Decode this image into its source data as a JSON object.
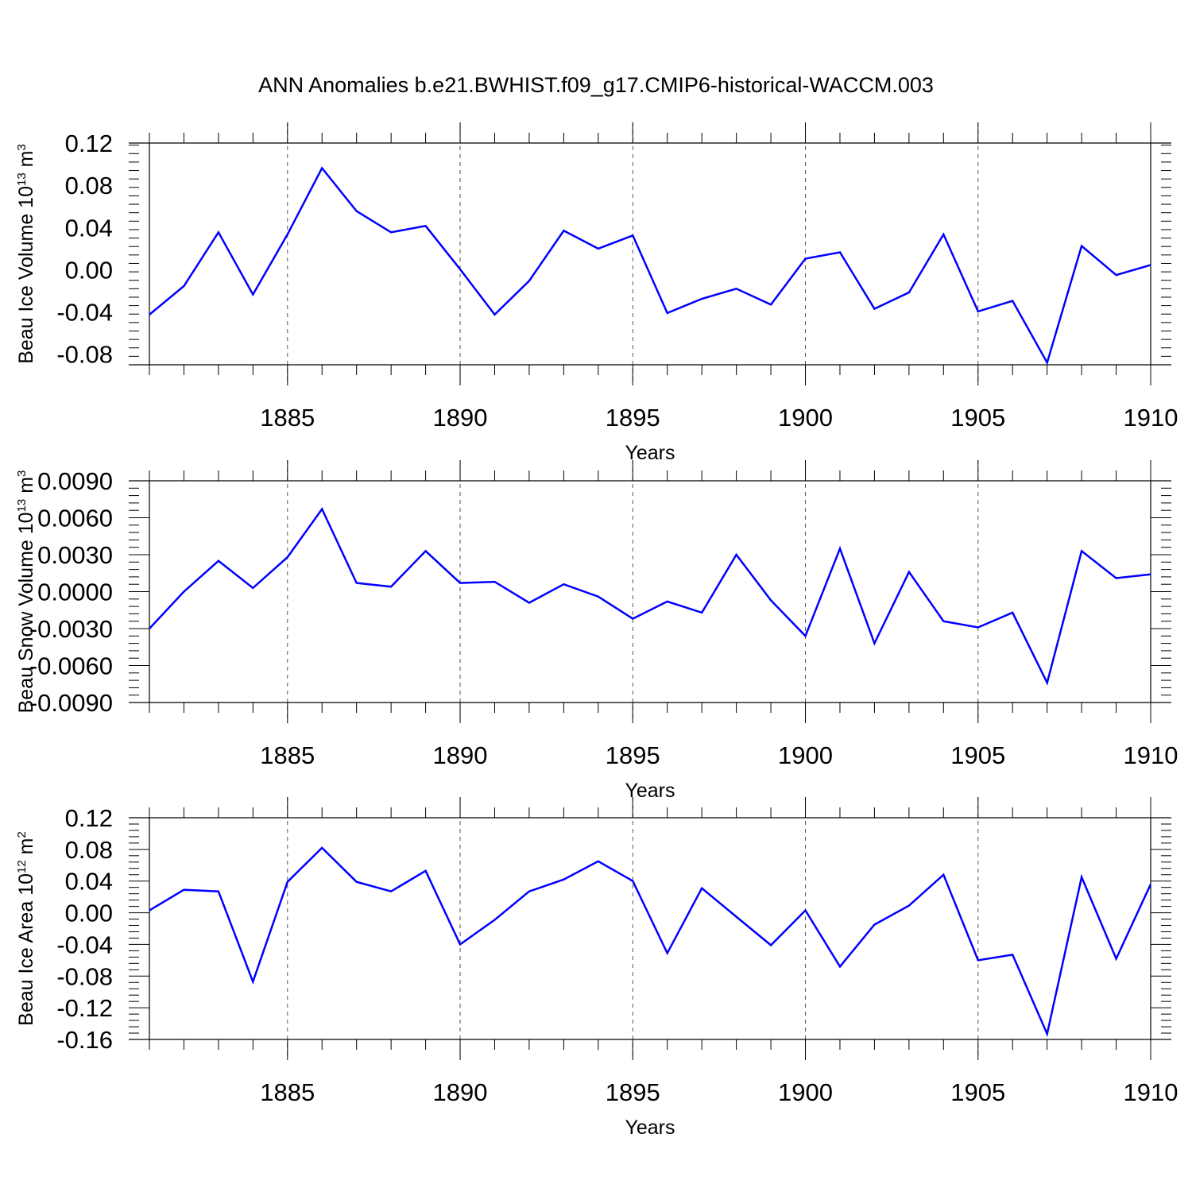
{
  "title": "ANN Anomalies b.e21.BWHIST.f09_g17.CMIP6-historical-WACCM.003",
  "colors": {
    "line": "#0000ff",
    "grid": "#555555",
    "axis": "#000000"
  },
  "chart_data": [
    {
      "type": "line",
      "ylabel": {
        "prefix": "Beau Ice Volume 10",
        "exp": "13",
        "unit": " m",
        "unit_exp": "3"
      },
      "xlabel": "Years",
      "xlim": [
        1881,
        1910
      ],
      "ylim": [
        -0.09,
        0.12
      ],
      "x_tick_labels": [
        "1885",
        "1890",
        "1895",
        "1900",
        "1905",
        "1910"
      ],
      "y_tick_labels": [
        "0.12",
        "0.08",
        "0.04",
        "0.00",
        "-0.04",
        "-0.08"
      ],
      "y_tick_values": [
        0.12,
        0.08,
        0.04,
        0.0,
        -0.04,
        -0.08
      ],
      "grid_x": [
        1885,
        1890,
        1895,
        1900,
        1905
      ],
      "x": [
        1881,
        1882,
        1883,
        1884,
        1885,
        1886,
        1887,
        1888,
        1889,
        1890,
        1891,
        1892,
        1893,
        1894,
        1895,
        1896,
        1897,
        1898,
        1899,
        1900,
        1901,
        1902,
        1903,
        1904,
        1905,
        1906,
        1907,
        1908,
        1909,
        1910
      ],
      "values": [
        -0.0425,
        -0.0155,
        0.0355,
        -0.0235,
        0.0335,
        0.0963,
        0.0555,
        0.0355,
        0.0415,
        0.0005,
        -0.0425,
        -0.0105,
        0.037,
        0.02,
        0.0325,
        -0.041,
        -0.0275,
        -0.018,
        -0.033,
        0.0105,
        0.0165,
        -0.037,
        -0.0215,
        0.0335,
        -0.0395,
        -0.0295,
        -0.088,
        0.0225,
        -0.005,
        0.0045
      ]
    },
    {
      "type": "line",
      "ylabel": {
        "prefix": "Beau Snow Volume 10",
        "exp": "13",
        "unit": " m",
        "unit_exp": "3"
      },
      "xlabel": "Years",
      "xlim": [
        1881,
        1910
      ],
      "ylim": [
        -0.009,
        0.009
      ],
      "x_tick_labels": [
        "1885",
        "1890",
        "1895",
        "1900",
        "1905",
        "1910"
      ],
      "y_tick_labels": [
        "0.0090",
        "0.0060",
        "0.0030",
        "0.0000",
        "-0.0030",
        "-0.0060",
        "-0.0090"
      ],
      "y_tick_values": [
        0.009,
        0.006,
        0.003,
        0.0,
        -0.003,
        -0.006,
        -0.009
      ],
      "grid_x": [
        1885,
        1890,
        1895,
        1900,
        1905
      ],
      "x": [
        1881,
        1882,
        1883,
        1884,
        1885,
        1886,
        1887,
        1888,
        1889,
        1890,
        1891,
        1892,
        1893,
        1894,
        1895,
        1896,
        1897,
        1898,
        1899,
        1900,
        1901,
        1902,
        1903,
        1904,
        1905,
        1906,
        1907,
        1908,
        1909,
        1910
      ],
      "values": [
        -0.003,
        0.0,
        0.0025,
        0.0003,
        0.0028,
        0.0067,
        0.0007,
        0.0004,
        0.0033,
        0.0007,
        0.0008,
        -0.0009,
        0.0006,
        -0.0004,
        -0.0022,
        -0.0008,
        -0.0017,
        0.003,
        -0.0007,
        -0.0036,
        0.0035,
        -0.0042,
        0.0016,
        -0.0024,
        -0.0029,
        -0.0017,
        -0.0074,
        0.0033,
        0.0011,
        0.0014
      ]
    },
    {
      "type": "line",
      "ylabel": {
        "prefix": "Beau Ice Area 10",
        "exp": "12",
        "unit": " m",
        "unit_exp": "2"
      },
      "xlabel": "Years",
      "xlim": [
        1881,
        1910
      ],
      "ylim": [
        -0.16,
        0.12
      ],
      "x_tick_labels": [
        "1885",
        "1890",
        "1895",
        "1900",
        "1905",
        "1910"
      ],
      "y_tick_labels": [
        "0.12",
        "0.08",
        "0.04",
        "0.00",
        "-0.04",
        "-0.08",
        "-0.12",
        "-0.16"
      ],
      "y_tick_values": [
        0.12,
        0.08,
        0.04,
        0.0,
        -0.04,
        -0.08,
        -0.12,
        -0.16
      ],
      "grid_x": [
        1885,
        1890,
        1895,
        1900,
        1905
      ],
      "x": [
        1881,
        1882,
        1883,
        1884,
        1885,
        1886,
        1887,
        1888,
        1889,
        1890,
        1891,
        1892,
        1893,
        1894,
        1895,
        1896,
        1897,
        1898,
        1899,
        1900,
        1901,
        1902,
        1903,
        1904,
        1905,
        1906,
        1907,
        1908,
        1909,
        1910
      ],
      "values": [
        0.003,
        0.029,
        0.027,
        -0.087,
        0.039,
        0.082,
        0.039,
        0.027,
        0.053,
        -0.04,
        -0.009,
        0.027,
        0.042,
        0.065,
        0.04,
        -0.051,
        0.031,
        -0.005,
        -0.041,
        0.003,
        -0.068,
        -0.015,
        0.009,
        0.048,
        -0.06,
        -0.053,
        -0.153,
        0.045,
        -0.058,
        0.036
      ]
    }
  ]
}
